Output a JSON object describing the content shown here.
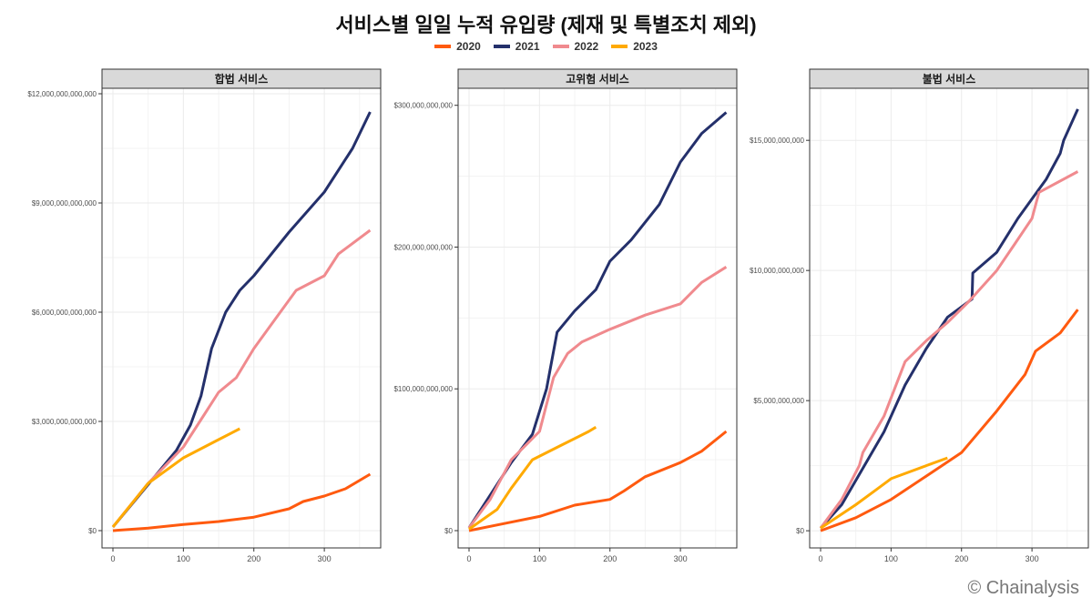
{
  "title": "서비스별 일일 누적 유입량 (제재 및 특별조치 제외)",
  "credit": "© Chainalysis",
  "chart_data": [
    {
      "type": "line",
      "facet": "합법 서비스",
      "xlim": [
        -15.5,
        380
      ],
      "ylim": [
        -475000000000,
        12150000000000
      ],
      "xticks": [
        0,
        100,
        200,
        300
      ],
      "yticks": [
        0,
        3000000000000,
        6000000000000,
        9000000000000,
        12000000000000
      ],
      "ytick_labels": [
        "$0",
        "$3,000,000,000,000",
        "$6,000,000,000,000",
        "$9,000,000,000,000",
        "$12,000,000,000,000"
      ],
      "series": [
        {
          "name": "2020",
          "x": [
            0,
            50,
            100,
            150,
            200,
            250,
            270,
            300,
            330,
            365
          ],
          "y": [
            0,
            70000000000.0,
            170000000000.0,
            250000000000.0,
            370000000000.0,
            600000000000.0,
            800000000000.0,
            950000000000.0,
            1150000000000.0,
            1550000000000.0
          ]
        },
        {
          "name": "2021",
          "x": [
            0,
            30,
            60,
            90,
            110,
            125,
            140,
            160,
            180,
            200,
            250,
            300,
            340,
            365
          ],
          "y": [
            100000000000.0,
            800000000000.0,
            1500000000000.0,
            2200000000000.0,
            2900000000000.0,
            3700000000000.0,
            5000000000000.0,
            6000000000000.0,
            6600000000000.0,
            7000000000000.0,
            8200000000000.0,
            9300000000000.0,
            10500000000000.0,
            11500000000000.0
          ]
        },
        {
          "name": "2022",
          "x": [
            0,
            50,
            100,
            130,
            150,
            175,
            200,
            230,
            260,
            300,
            320,
            365
          ],
          "y": [
            100000000000.0,
            1300000000000.0,
            2300000000000.0,
            3200000000000.0,
            3800000000000.0,
            4200000000000.0,
            5000000000000.0,
            5800000000000.0,
            6600000000000.0,
            7000000000000.0,
            7600000000000.0,
            8250000000000.0
          ]
        },
        {
          "name": "2023",
          "x": [
            0,
            50,
            100,
            150,
            180
          ],
          "y": [
            100000000000.0,
            1300000000000.0,
            2000000000000.0,
            2500000000000.0,
            2800000000000.0
          ]
        }
      ]
    },
    {
      "type": "line",
      "facet": "고위험 서비스",
      "xlim": [
        -15.5,
        380
      ],
      "ylim": [
        -12200000000,
        312000000000
      ],
      "xticks": [
        0,
        100,
        200,
        300
      ],
      "yticks": [
        0,
        100000000000,
        200000000000,
        300000000000
      ],
      "ytick_labels": [
        "$0",
        "$100,000,000,000",
        "$200,000,000,000",
        "$300,000,000,000"
      ],
      "series": [
        {
          "name": "2020",
          "x": [
            0,
            50,
            100,
            150,
            200,
            220,
            250,
            300,
            330,
            365
          ],
          "y": [
            0,
            5000000000.0,
            10000000000.0,
            18000000000.0,
            22000000000.0,
            28000000000.0,
            38000000000.0,
            48000000000.0,
            56000000000.0,
            70000000000.0
          ]
        },
        {
          "name": "2021",
          "x": [
            0,
            30,
            60,
            90,
            110,
            125,
            150,
            180,
            200,
            230,
            270,
            300,
            330,
            365
          ],
          "y": [
            2000000000.0,
            25000000000.0,
            48000000000.0,
            68000000000.0,
            100000000000.0,
            140000000000.0,
            155000000000.0,
            170000000000.0,
            190000000000.0,
            205000000000.0,
            230000000000.0,
            260000000000.0,
            280000000000.0,
            295000000000.0
          ]
        },
        {
          "name": "2022",
          "x": [
            0,
            30,
            60,
            100,
            120,
            140,
            160,
            200,
            250,
            300,
            330,
            365
          ],
          "y": [
            2000000000.0,
            22000000000.0,
            50000000000.0,
            70000000000.0,
            108000000000.0,
            125000000000.0,
            133000000000.0,
            142000000000.0,
            152000000000.0,
            160000000000.0,
            175000000000.0,
            186000000000.0
          ]
        },
        {
          "name": "2023",
          "x": [
            0,
            40,
            60,
            90,
            130,
            170,
            180
          ],
          "y": [
            1000000000.0,
            15000000000.0,
            30000000000.0,
            50000000000.0,
            60000000000.0,
            70000000000.0,
            73000000000.0
          ]
        }
      ]
    },
    {
      "type": "line",
      "facet": "불법 서비스",
      "xlim": [
        -15.5,
        380
      ],
      "ylim": [
        -660000000,
        17000000000
      ],
      "xticks": [
        0,
        100,
        200,
        300
      ],
      "yticks": [
        0,
        5000000000,
        10000000000,
        15000000000
      ],
      "ytick_labels": [
        "$0",
        "$5,000,000,000",
        "$10,000,000,000",
        "$15,000,000,000"
      ],
      "series": [
        {
          "name": "2020",
          "x": [
            0,
            50,
            100,
            150,
            200,
            250,
            290,
            305,
            340,
            365
          ],
          "y": [
            0,
            500000000.0,
            1200000000.0,
            2100000000.0,
            3000000000.0,
            4600000000.0,
            6000000000.0,
            6900000000.0,
            7600000000.0,
            8500000000.0
          ]
        },
        {
          "name": "2021",
          "x": [
            0,
            30,
            60,
            90,
            120,
            150,
            180,
            215,
            216,
            250,
            280,
            320,
            340,
            345,
            365
          ],
          "y": [
            100000000.0,
            1000000000.0,
            2400000000.0,
            3800000000.0,
            5600000000.0,
            7000000000.0,
            8200000000.0,
            8900000000.0,
            9900000000.0,
            10700000000.0,
            12000000000.0,
            13500000000.0,
            14500000000.0,
            15000000000.0,
            16200000000.0
          ]
        },
        {
          "name": "2022",
          "x": [
            0,
            30,
            55,
            60,
            90,
            120,
            150,
            180,
            210,
            250,
            275,
            300,
            310,
            365
          ],
          "y": [
            100000000.0,
            1200000000.0,
            2500000000.0,
            3000000000.0,
            4400000000.0,
            6500000000.0,
            7300000000.0,
            8000000000.0,
            8800000000.0,
            10000000000.0,
            11000000000.0,
            12000000000.0,
            13000000000.0,
            13800000000.0
          ]
        },
        {
          "name": "2023",
          "x": [
            0,
            50,
            80,
            100,
            150,
            180
          ],
          "y": [
            100000000.0,
            1000000000.0,
            1600000000.0,
            2000000000.0,
            2500000000.0,
            2800000000.0
          ]
        }
      ]
    }
  ],
  "legend": [
    {
      "name": "2020",
      "color": "#FF5A0F"
    },
    {
      "name": "2021",
      "color": "#24306B"
    },
    {
      "name": "2022",
      "color": "#F08A8E"
    },
    {
      "name": "2023",
      "color": "#FFAA00"
    }
  ]
}
